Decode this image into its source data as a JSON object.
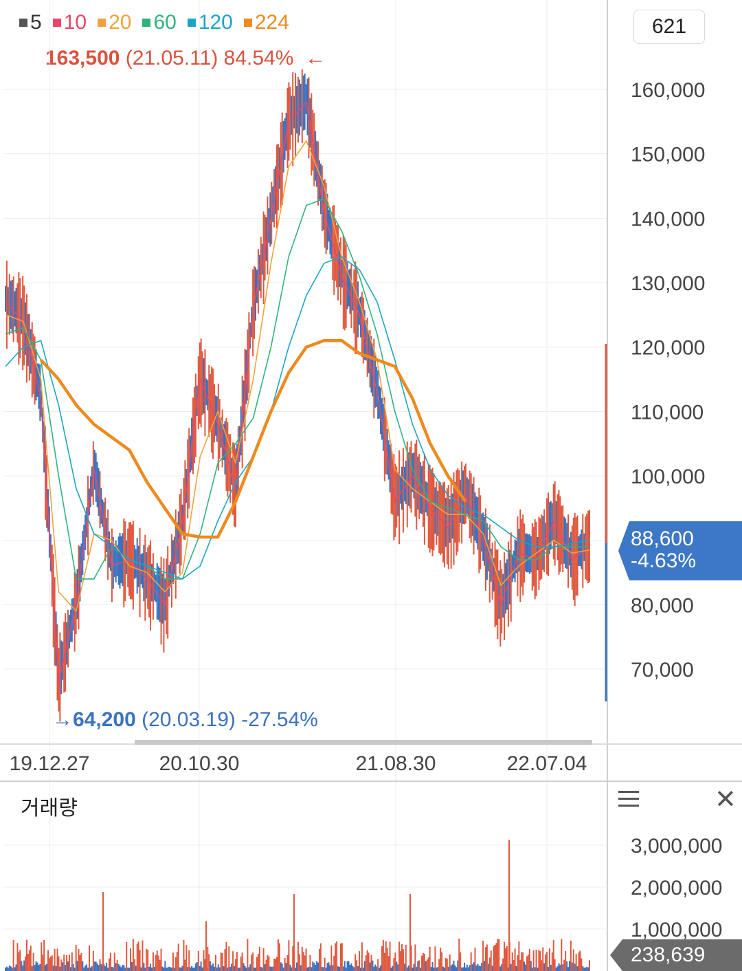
{
  "legend": [
    {
      "label": "5",
      "color": "#555555"
    },
    {
      "label": "10",
      "color": "#e8476a"
    },
    {
      "label": "20",
      "color": "#f2a23a"
    },
    {
      "label": "60",
      "color": "#2fb37d"
    },
    {
      "label": "120",
      "color": "#1aa5c8"
    },
    {
      "label": "224",
      "color": "#ee8a1e"
    }
  ],
  "count_box": "621",
  "high": {
    "price": "163,500",
    "date": "(21.05.11)",
    "pct": "84.54%",
    "arrow": "←"
  },
  "low": {
    "arrow": "→",
    "price": "64,200",
    "date": "(20.03.19)",
    "pct": "-27.54%"
  },
  "current": {
    "price": "88,600",
    "change": "-4.63%"
  },
  "volume": {
    "title": "거래량",
    "current": "238,639"
  },
  "colors": {
    "up": "#e0583e",
    "down": "#3a72bf",
    "accent_blue": "#3c78c5"
  },
  "chart_data": [
    {
      "type": "line",
      "ylim": [
        60000,
        168000
      ],
      "yticks": [
        "160,000",
        "150,000",
        "140,000",
        "130,000",
        "120,000",
        "110,000",
        "100,000",
        "90,000",
        "80,000",
        "70,000"
      ],
      "ytick_values": [
        160000,
        150000,
        140000,
        130000,
        120000,
        110000,
        100000,
        90000,
        80000,
        70000
      ],
      "xticks": [
        "19.12.27",
        "20.10.30",
        "21.08.30",
        "22.07.04"
      ],
      "x": [
        "19.12",
        "20.01",
        "20.02",
        "20.03",
        "20.04",
        "20.05",
        "20.06",
        "20.07",
        "20.08",
        "20.09",
        "20.10",
        "20.11",
        "20.12",
        "21.01",
        "21.02",
        "21.03",
        "21.04",
        "21.05",
        "21.06",
        "21.07",
        "21.08",
        "21.09",
        "21.10",
        "21.11",
        "21.12",
        "22.01",
        "22.02",
        "22.03",
        "22.04",
        "22.05",
        "22.06",
        "22.07",
        "22.08",
        "22.09"
      ],
      "series": [
        {
          "name": "5",
          "color": "#e8476a",
          "values": [
            127000,
            124000,
            112000,
            68000,
            80000,
            101000,
            86000,
            87000,
            84000,
            80000,
            93000,
            115000,
            108000,
            98000,
            126000,
            140000,
            155000,
            158000,
            141000,
            131000,
            125000,
            113000,
            96000,
            100000,
            95000,
            92000,
            97000,
            90000,
            80000,
            88000,
            87000,
            93000,
            87000,
            89000
          ]
        },
        {
          "name": "20",
          "color": "#f2a23a",
          "values": [
            125000,
            124000,
            115000,
            82000,
            79000,
            91000,
            90000,
            86000,
            85000,
            82000,
            85000,
            103000,
            110000,
            102000,
            115000,
            133000,
            148000,
            152000,
            145000,
            134000,
            127000,
            118000,
            101000,
            98000,
            96000,
            94000,
            94000,
            91000,
            83000,
            86000,
            88000,
            90000,
            88000,
            88500
          ]
        },
        {
          "name": "60",
          "color": "#2fb37d",
          "values": [
            122000,
            123000,
            118000,
            100000,
            84000,
            84000,
            89000,
            87000,
            86000,
            84000,
            84000,
            91000,
            102000,
            105000,
            109000,
            120000,
            134000,
            142000,
            143000,
            138000,
            131000,
            122000,
            110000,
            101000,
            96000,
            95000,
            94000,
            93000,
            89000,
            87000,
            87000,
            89000,
            89000,
            89000
          ]
        },
        {
          "name": "120",
          "color": "#1aa5c8",
          "values": [
            117000,
            120000,
            121000,
            111000,
            98000,
            91000,
            89000,
            87000,
            86000,
            85000,
            84000,
            86000,
            93000,
            99000,
            103000,
            110000,
            120000,
            128000,
            133000,
            134000,
            132000,
            127000,
            118000,
            108000,
            101000,
            97000,
            95000,
            94000,
            92000,
            90000,
            89000,
            89000,
            89500,
            90000
          ]
        },
        {
          "name": "224",
          "color": "#ee8a1e",
          "values": [
            null,
            null,
            118000,
            115000,
            111000,
            108000,
            106000,
            104000,
            99000,
            95000,
            91000,
            90500,
            90500,
            96000,
            103000,
            110000,
            116000,
            120000,
            121000,
            121000,
            119000,
            118000,
            117000,
            112000,
            105000,
            100000,
            96000,
            null,
            null,
            null,
            null,
            null,
            null,
            null
          ]
        }
      ]
    },
    {
      "type": "bar",
      "title": "거래량",
      "ylim": [
        0,
        3600000
      ],
      "yticks": [
        "3,000,000",
        "2,000,000",
        "1,000,000"
      ],
      "ytick_values": [
        3000000,
        2000000,
        1000000
      ],
      "spikes": [
        {
          "date": "20.03",
          "value": 1900000
        },
        {
          "date": "20.10",
          "value": 1200000
        },
        {
          "date": "21.02",
          "value": 1850000
        },
        {
          "date": "21.08",
          "value": 1850000
        },
        {
          "date": "22.02",
          "value": 3150000
        }
      ],
      "last_value": 238639
    }
  ]
}
